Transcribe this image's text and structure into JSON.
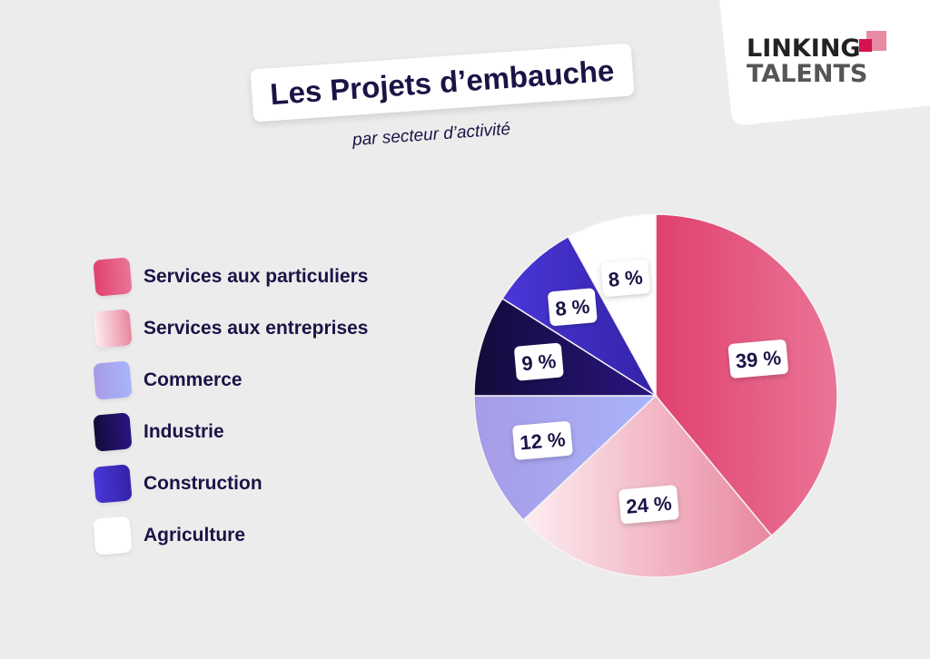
{
  "logo": {
    "line1": "LINKING",
    "line2": "TALENTS"
  },
  "chart_data": {
    "type": "pie",
    "title": "Les Projets d’embauche",
    "subtitle": "par secteur d’activité",
    "legend_position": "left",
    "categories": [
      "Services aux particuliers",
      "Services aux entreprises",
      "Commerce",
      "Industrie",
      "Construction",
      "Agriculture"
    ],
    "values": [
      39,
      24,
      12,
      9,
      8,
      8
    ],
    "labels": [
      "39 %",
      "24 %",
      "12 %",
      "9 %",
      "8 %",
      "8 %"
    ],
    "colors": [
      [
        "#e0416f",
        "#ea7596"
      ],
      [
        "#fdeef2",
        "#e9879f"
      ],
      [
        "#a79be6",
        "#a8b4fb"
      ],
      [
        "#130b3a",
        "#2a1580"
      ],
      [
        "#4a37d8",
        "#3323a8"
      ],
      [
        "#ffffff",
        "#ffffff"
      ]
    ]
  }
}
